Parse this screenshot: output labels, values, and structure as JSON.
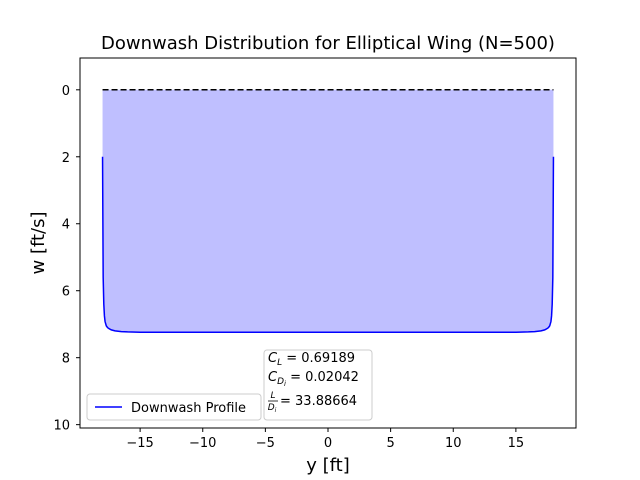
{
  "chart_data": {
    "type": "area",
    "title": "Downwash Distribution for Elliptical Wing (N=500)",
    "xlabel": "y [ft]",
    "ylabel": "w [ft/s]",
    "xlim": [
      -19.8,
      19.8
    ],
    "ylim": [
      10.1,
      -0.95
    ],
    "y_axis_inverted": true,
    "xticks": [
      -15,
      -10,
      -5,
      0,
      5,
      10,
      15
    ],
    "yticks": [
      0,
      2,
      4,
      6,
      8,
      10
    ],
    "grid": false,
    "legend": {
      "placement": "lower-left",
      "entries": [
        "Downwash Profile"
      ]
    },
    "series": [
      {
        "name": "Downwash Profile",
        "color": "#0000ff",
        "fill_color": "#bfbfff",
        "fill_to": 0,
        "x": [
          -18.0,
          -17.95,
          -17.9,
          -17.85,
          -17.8,
          -17.7,
          -17.6,
          -17.5,
          -17.3,
          -17.0,
          -16.5,
          -16.0,
          -15.0,
          -10.0,
          0.0,
          10.0,
          15.0,
          16.0,
          16.5,
          17.0,
          17.3,
          17.5,
          17.6,
          17.7,
          17.8,
          17.85,
          17.9,
          17.95,
          18.0
        ],
        "y": [
          2.0,
          5.6,
          6.4,
          6.75,
          6.92,
          7.05,
          7.1,
          7.13,
          7.17,
          7.2,
          7.22,
          7.23,
          7.24,
          7.24,
          7.24,
          7.24,
          7.24,
          7.23,
          7.22,
          7.2,
          7.17,
          7.13,
          7.1,
          7.05,
          6.92,
          6.75,
          6.4,
          5.6,
          2.0
        ]
      }
    ],
    "reference_line": {
      "y": 0,
      "x": [
        -18.0,
        18.0
      ],
      "style": "dashed",
      "color": "#000000"
    },
    "annotation": [
      {
        "symbol": "C",
        "sub": "L",
        "sub2": "",
        "value": " = 0.69189"
      },
      {
        "symbol": "C",
        "sub": "D",
        "sub2": "i",
        "value": " = 0.02042"
      },
      {
        "symbol": "L/Di",
        "sub": "",
        "sub2": "",
        "value": " = 33.88664"
      }
    ]
  }
}
